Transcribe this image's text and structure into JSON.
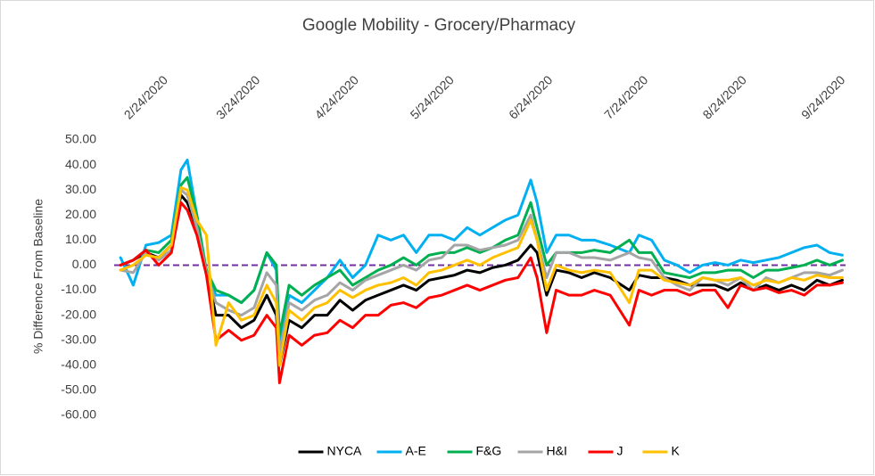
{
  "chart_data": {
    "type": "line",
    "title": "Google Mobility - Grocery/Pharmacy",
    "y_label": "% Difference From Baseline",
    "x": [
      "2/22/2020",
      "2/26/2020",
      "3/1/2020",
      "3/5/2020",
      "3/9/2020",
      "3/12/2020",
      "3/14/2020",
      "3/17/2020",
      "3/20/2020",
      "3/23/2020",
      "3/27/2020",
      "3/31/2020",
      "4/4/2020",
      "4/8/2020",
      "4/11/2020",
      "4/12/2020",
      "4/15/2020",
      "4/19/2020",
      "4/23/2020",
      "4/27/2020",
      "5/1/2020",
      "5/5/2020",
      "5/9/2020",
      "5/13/2020",
      "5/17/2020",
      "5/21/2020",
      "5/25/2020",
      "5/29/2020",
      "6/2/2020",
      "6/6/2020",
      "6/10/2020",
      "6/14/2020",
      "6/18/2020",
      "6/22/2020",
      "6/26/2020",
      "6/30/2020",
      "7/2/2020",
      "7/5/2020",
      "7/8/2020",
      "7/12/2020",
      "7/16/2020",
      "7/20/2020",
      "7/25/2020",
      "7/31/2020",
      "8/3/2020",
      "8/7/2020",
      "8/11/2020",
      "8/15/2020",
      "8/19/2020",
      "8/23/2020",
      "8/27/2020",
      "8/31/2020",
      "9/4/2020",
      "9/8/2020",
      "9/12/2020",
      "9/16/2020",
      "9/20/2020",
      "9/24/2020",
      "9/28/2020",
      "10/2/2020",
      "10/6/2020"
    ],
    "xlim": [
      "2/20/2020",
      "10/7/2020"
    ],
    "xticks": [
      "2/24/2020",
      "3/24/2020",
      "4/24/2020",
      "5/24/2020",
      "6/24/2020",
      "7/24/2020",
      "8/24/2020",
      "9/24/2020"
    ],
    "ylim": [
      -60,
      50
    ],
    "yticks": [
      {
        "value": -60,
        "label": "-60.00"
      },
      {
        "value": -50,
        "label": "-50.00"
      },
      {
        "value": -40,
        "label": "-40.00"
      },
      {
        "value": -30,
        "label": "-30.00"
      },
      {
        "value": -20,
        "label": "-20.00"
      },
      {
        "value": -10,
        "label": "-10.00"
      },
      {
        "value": 0,
        "label": "0.00"
      },
      {
        "value": 10,
        "label": "10.00"
      },
      {
        "value": 20,
        "label": "20.00"
      },
      {
        "value": 30,
        "label": "30.00"
      },
      {
        "value": 40,
        "label": "40.00"
      },
      {
        "value": 50,
        "label": "50.00"
      }
    ],
    "grid": false,
    "legend": "bottom",
    "reference_line": {
      "value": 0,
      "color": "#7030a0",
      "style": "dashed"
    },
    "series": [
      {
        "name": "NYCA",
        "color": "#000000",
        "values": [
          0,
          2,
          5,
          3,
          8,
          28,
          25,
          15,
          -2,
          -20,
          -20,
          -25,
          -22,
          -12,
          -20,
          -40,
          -22,
          -25,
          -20,
          -20,
          -14,
          -18,
          -14,
          -12,
          -10,
          -8,
          -10,
          -6,
          -5,
          -4,
          -2,
          -3,
          -1,
          0,
          2,
          8,
          5,
          -12,
          -2,
          -3,
          -5,
          -3,
          -5,
          -10,
          -4,
          -5,
          -5,
          -6,
          -8,
          -8,
          -8,
          -10,
          -7,
          -10,
          -8,
          -10,
          -8,
          -10,
          -6,
          -8,
          -6
        ]
      },
      {
        "name": "A-E",
        "color": "#00b0f0",
        "values": [
          3,
          -8,
          8,
          9,
          12,
          38,
          42,
          20,
          -3,
          -12,
          -12,
          -15,
          -10,
          5,
          -2,
          -30,
          -12,
          -15,
          -10,
          -5,
          2,
          -5,
          0,
          12,
          10,
          12,
          5,
          12,
          12,
          10,
          15,
          12,
          15,
          18,
          20,
          34,
          25,
          5,
          12,
          12,
          10,
          10,
          8,
          5,
          12,
          10,
          2,
          0,
          -3,
          0,
          1,
          0,
          2,
          1,
          2,
          3,
          5,
          7,
          8,
          5,
          4
        ]
      },
      {
        "name": "F&G",
        "color": "#00b050",
        "values": [
          0,
          2,
          6,
          5,
          10,
          32,
          35,
          20,
          -2,
          -10,
          -12,
          -15,
          -10,
          5,
          0,
          -28,
          -8,
          -12,
          -8,
          -5,
          -2,
          -8,
          -5,
          -2,
          0,
          3,
          0,
          4,
          5,
          5,
          7,
          5,
          7,
          10,
          12,
          25,
          15,
          0,
          5,
          5,
          5,
          6,
          5,
          10,
          5,
          5,
          -3,
          -4,
          -5,
          -3,
          -3,
          -2,
          -2,
          -5,
          -2,
          -2,
          -1,
          0,
          2,
          0,
          2
        ]
      },
      {
        "name": "H&I",
        "color": "#a5a5a5",
        "values": [
          -2,
          -3,
          5,
          2,
          6,
          30,
          28,
          15,
          -3,
          -15,
          -18,
          -20,
          -17,
          -3,
          -8,
          -35,
          -15,
          -18,
          -14,
          -12,
          -7,
          -10,
          -6,
          -4,
          -2,
          0,
          -2,
          2,
          3,
          8,
          8,
          6,
          7,
          8,
          10,
          20,
          10,
          -5,
          5,
          5,
          3,
          3,
          2,
          5,
          3,
          2,
          -5,
          -8,
          -10,
          -5,
          -6,
          -8,
          -5,
          -10,
          -5,
          -7,
          -5,
          -3,
          -3,
          -4,
          -2
        ]
      },
      {
        "name": "J",
        "color": "#ff0000",
        "values": [
          0,
          2,
          6,
          0,
          5,
          25,
          22,
          12,
          -4,
          -30,
          -26,
          -30,
          -28,
          -20,
          -25,
          -47,
          -28,
          -32,
          -28,
          -27,
          -22,
          -25,
          -20,
          -20,
          -16,
          -15,
          -17,
          -13,
          -12,
          -10,
          -8,
          -10,
          -8,
          -6,
          -5,
          3,
          -5,
          -27,
          -10,
          -12,
          -12,
          -10,
          -12,
          -24,
          -10,
          -12,
          -10,
          -10,
          -12,
          -10,
          -10,
          -17,
          -8,
          -10,
          -9,
          -11,
          -10,
          -12,
          -8,
          -8,
          -7
        ]
      },
      {
        "name": "K",
        "color": "#ffc000",
        "values": [
          -2,
          0,
          4,
          3,
          8,
          31,
          30,
          18,
          12,
          -32,
          -15,
          -22,
          -20,
          -8,
          -15,
          -40,
          -18,
          -22,
          -17,
          -15,
          -10,
          -13,
          -10,
          -8,
          -7,
          -5,
          -8,
          -3,
          -2,
          0,
          2,
          0,
          3,
          5,
          7,
          18,
          10,
          -10,
          0,
          -2,
          -3,
          -2,
          -3,
          -15,
          -2,
          -2,
          -6,
          -7,
          -8,
          -5,
          -6,
          -6,
          -5,
          -8,
          -6,
          -7,
          -5,
          -6,
          -4,
          -5,
          -5
        ]
      }
    ]
  }
}
